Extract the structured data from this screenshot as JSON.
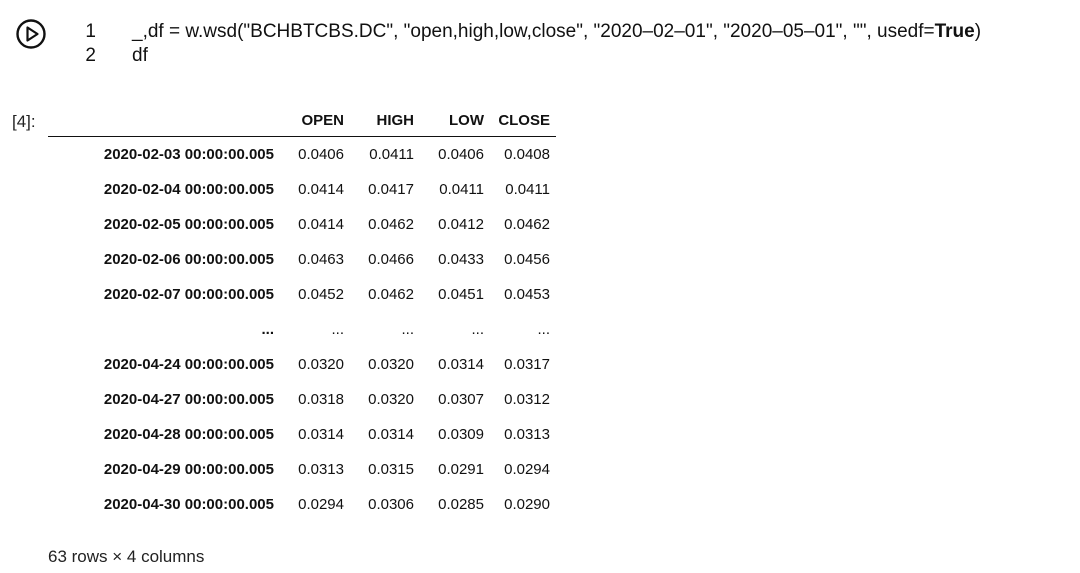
{
  "code_cell": {
    "lines": [
      {
        "number": "1",
        "prefix": "_,df = w.wsd(\"BCHBTCBS.DC\", \"open,high,low,close\", \"2020–02–01\", \"2020–05–01\", \"\", usedf=",
        "keyword": "True",
        "suffix": ")"
      },
      {
        "number": "2",
        "prefix": "df",
        "keyword": "",
        "suffix": ""
      }
    ]
  },
  "output_cell": {
    "prompt": "[4]:",
    "columns": [
      "OPEN",
      "HIGH",
      "LOW",
      "CLOSE"
    ],
    "rows": [
      {
        "index": "2020-02-03 00:00:00.005",
        "values": [
          "0.0406",
          "0.0411",
          "0.0406",
          "0.0408"
        ]
      },
      {
        "index": "2020-02-04 00:00:00.005",
        "values": [
          "0.0414",
          "0.0417",
          "0.0411",
          "0.0411"
        ]
      },
      {
        "index": "2020-02-05 00:00:00.005",
        "values": [
          "0.0414",
          "0.0462",
          "0.0412",
          "0.0462"
        ]
      },
      {
        "index": "2020-02-06 00:00:00.005",
        "values": [
          "0.0463",
          "0.0466",
          "0.0433",
          "0.0456"
        ]
      },
      {
        "index": "2020-02-07 00:00:00.005",
        "values": [
          "0.0452",
          "0.0462",
          "0.0451",
          "0.0453"
        ]
      },
      {
        "index": "...",
        "values": [
          "...",
          "...",
          "...",
          "..."
        ]
      },
      {
        "index": "2020-04-24 00:00:00.005",
        "values": [
          "0.0320",
          "0.0320",
          "0.0314",
          "0.0317"
        ]
      },
      {
        "index": "2020-04-27 00:00:00.005",
        "values": [
          "0.0318",
          "0.0320",
          "0.0307",
          "0.0312"
        ]
      },
      {
        "index": "2020-04-28 00:00:00.005",
        "values": [
          "0.0314",
          "0.0314",
          "0.0309",
          "0.0313"
        ]
      },
      {
        "index": "2020-04-29 00:00:00.005",
        "values": [
          "0.0313",
          "0.0315",
          "0.0291",
          "0.0294"
        ]
      },
      {
        "index": "2020-04-30 00:00:00.005",
        "values": [
          "0.0294",
          "0.0306",
          "0.0285",
          "0.0290"
        ]
      }
    ],
    "shape_note": "63 rows × 4 columns"
  },
  "icons": {
    "run": "play-circle-icon"
  }
}
